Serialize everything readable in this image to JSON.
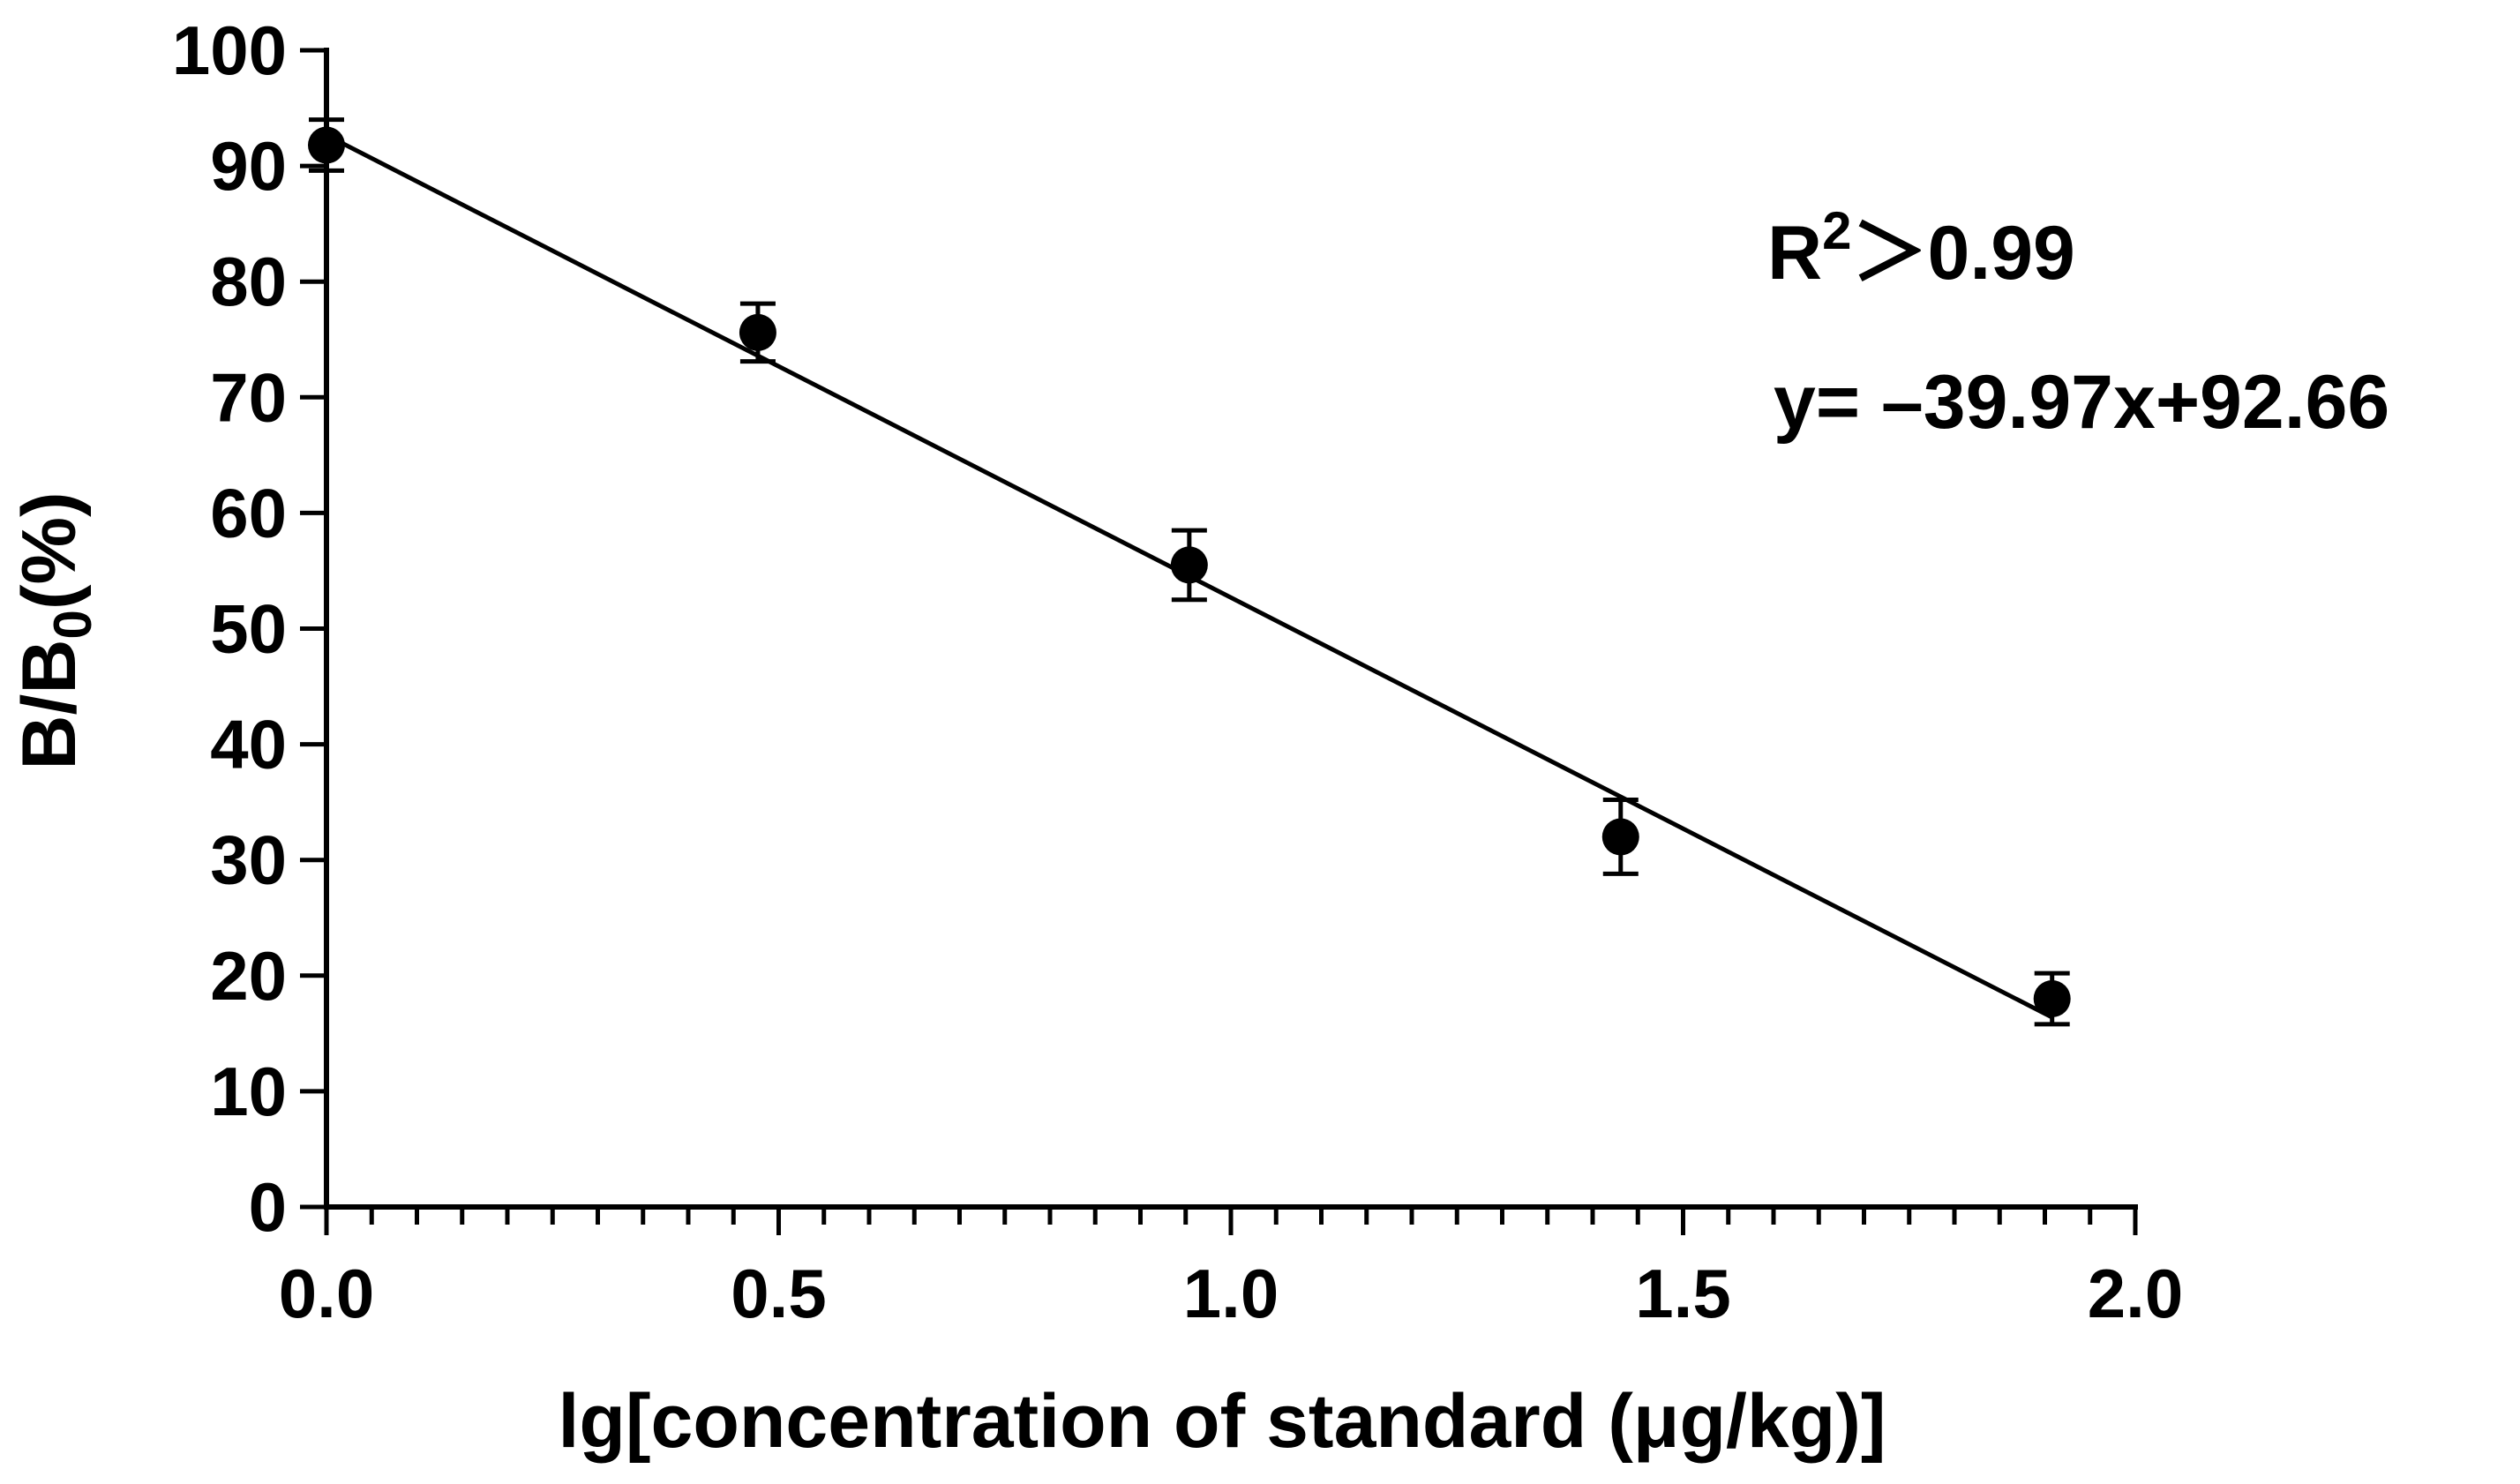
{
  "chart_data": {
    "type": "scatter",
    "xlabel": "lg[concentration of standard (μg/kg)]",
    "ylabel": {
      "main": "B/B",
      "sub": "0",
      "suffix": "(%)"
    },
    "xlim": [
      0,
      2.0
    ],
    "ylim": [
      0,
      100
    ],
    "x_ticks": [
      "0.0",
      "0.5",
      "1.0",
      "1.5",
      "2.0"
    ],
    "y_ticks": [
      "0",
      "10",
      "20",
      "30",
      "40",
      "50",
      "60",
      "70",
      "80",
      "90",
      "100"
    ],
    "x_minor_step": 0.05,
    "points": [
      {
        "x": 0.0,
        "y": 91.8,
        "err": 2.2
      },
      {
        "x": 0.477,
        "y": 75.6,
        "err": 2.5
      },
      {
        "x": 0.954,
        "y": 55.5,
        "err": 3.0
      },
      {
        "x": 1.431,
        "y": 32.0,
        "err": 3.2
      },
      {
        "x": 1.908,
        "y": 18.0,
        "err": 2.2
      }
    ],
    "fit": {
      "slope": -39.97,
      "intercept": 92.66,
      "x_range": [
        0.0,
        1.908
      ]
    },
    "annotations": {
      "r2_base": "R",
      "r2_sup": "2",
      "r2_rest": "＞0.99",
      "equation": "y= –39.97x+92.66"
    },
    "grid": false,
    "legend": "none"
  }
}
